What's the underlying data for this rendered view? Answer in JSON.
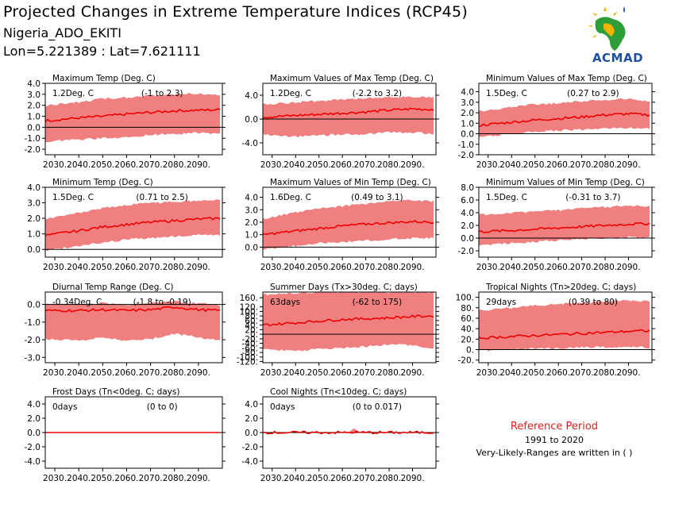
{
  "header": {
    "title": "Projected Changes in Extreme Temperature Indices (RCP45)",
    "location": "Nigeria_ADO_EKITI",
    "coordinates": "Lon=5.221389 : Lat=7.621111"
  },
  "logo": {
    "name": "ACMAD"
  },
  "reference": {
    "title": "Reference Period",
    "years": "1991 to 2020",
    "note": "Very-Likely-Ranges are written in ( )"
  },
  "colors": {
    "band": "#f08080",
    "line": "#ee0000",
    "zero": "#000000",
    "ref_title": "#e02020",
    "logo_text": "#1f4fa0"
  },
  "chart_data": [
    {
      "type": "area",
      "title": "Maximum Temp (Deg. C)",
      "value_label": "1.2Deg. C",
      "range_label": "(-1 to 2.3)",
      "xlim": [
        2026,
        2100
      ],
      "xticks": [
        2030,
        2040,
        2050,
        2060,
        2070,
        2080,
        2090
      ],
      "xticklabels": [
        "2030.",
        "2040.",
        "2050.",
        "2060.",
        "2070.",
        "2080.",
        "2090."
      ],
      "ylim": [
        -2.5,
        4.0
      ],
      "yticks": [
        -2.0,
        -1.0,
        0.0,
        1.0,
        2.0,
        3.0,
        4.0
      ],
      "yticklabels": [
        "-2.0",
        "-1.0",
        "0.0",
        "1.0",
        "2.0",
        "3.0",
        "4.0"
      ],
      "x": [
        2026,
        2040,
        2050,
        2060,
        2070,
        2080,
        2090,
        2099
      ],
      "median": [
        0.6,
        0.85,
        1.0,
        1.2,
        1.35,
        1.5,
        1.55,
        1.6
      ],
      "low": [
        -1.2,
        -1.0,
        -0.9,
        -0.8,
        -0.6,
        -0.5,
        -0.4,
        -0.5
      ],
      "high": [
        1.9,
        2.2,
        2.5,
        2.6,
        2.8,
        2.9,
        3.0,
        2.8
      ]
    },
    {
      "type": "area",
      "title": "Maximum Values of Max Temp (Deg. C)",
      "value_label": "1.2Deg. C",
      "range_label": "(-2.2 to 3.2)",
      "xlim": [
        2026,
        2100
      ],
      "xticks": [
        2030,
        2040,
        2050,
        2060,
        2070,
        2080,
        2090
      ],
      "xticklabels": [
        "2030.",
        "2040.",
        "2050.",
        "2060.",
        "2070.",
        "2080.",
        "2090."
      ],
      "ylim": [
        -6.0,
        6.0
      ],
      "yticks": [
        -4.0,
        0.0,
        4.0
      ],
      "yticklabels": [
        "-4.0",
        "0.0",
        "4.0"
      ],
      "x": [
        2026,
        2040,
        2050,
        2060,
        2070,
        2080,
        2090,
        2099
      ],
      "median": [
        0.3,
        0.6,
        0.8,
        1.0,
        1.2,
        1.5,
        1.7,
        1.6
      ],
      "low": [
        -2.4,
        -2.8,
        -2.6,
        -2.4,
        -2.3,
        -2.0,
        -2.1,
        -2.3
      ],
      "high": [
        2.3,
        2.6,
        2.9,
        3.1,
        3.3,
        3.5,
        3.6,
        3.4
      ]
    },
    {
      "type": "area",
      "title": "Minimum Values of Max Temp (Deg. C)",
      "value_label": "1.5Deg. C",
      "range_label": "(0.27 to 2.9)",
      "xlim": [
        2026,
        2100
      ],
      "xticks": [
        2030,
        2040,
        2050,
        2060,
        2070,
        2080,
        2090
      ],
      "xticklabels": [
        "2030.",
        "2040.",
        "2050.",
        "2060.",
        "2070.",
        "2080.",
        "2090."
      ],
      "ylim": [
        -2.0,
        4.8
      ],
      "yticks": [
        -2.0,
        -1.0,
        0.0,
        1.0,
        2.0,
        3.0,
        4.0
      ],
      "yticklabels": [
        "-2.0",
        "-1.0",
        "0.0",
        "1.0",
        "2.0",
        "3.0",
        "4.0"
      ],
      "x": [
        2026,
        2040,
        2050,
        2060,
        2070,
        2080,
        2090,
        2099
      ],
      "median": [
        0.8,
        1.1,
        1.3,
        1.45,
        1.6,
        1.8,
        1.9,
        1.8
      ],
      "low": [
        -0.2,
        0.1,
        0.3,
        0.4,
        0.5,
        0.6,
        0.7,
        0.6
      ],
      "high": [
        2.0,
        2.4,
        2.7,
        2.8,
        3.0,
        3.1,
        3.2,
        3.0
      ]
    },
    {
      "type": "area",
      "title": "Minimum Temp (Deg. C)",
      "value_label": "1.5Deg. C",
      "range_label": "(0.71 to 2.5)",
      "xlim": [
        2026,
        2100
      ],
      "xticks": [
        2030,
        2040,
        2050,
        2060,
        2070,
        2080,
        2090
      ],
      "xticklabels": [
        "2030.",
        "2040.",
        "2050.",
        "2060.",
        "2070.",
        "2080.",
        "2090."
      ],
      "ylim": [
        -0.5,
        4.0
      ],
      "yticks": [
        0.0,
        1.0,
        2.0,
        3.0,
        4.0
      ],
      "yticklabels": [
        "0.0",
        "1.0",
        "2.0",
        "3.0",
        "4.0"
      ],
      "x": [
        2026,
        2040,
        2050,
        2060,
        2070,
        2080,
        2090,
        2099
      ],
      "median": [
        0.9,
        1.2,
        1.45,
        1.6,
        1.75,
        1.85,
        1.95,
        2.0
      ],
      "low": [
        0.0,
        0.3,
        0.5,
        0.7,
        0.8,
        0.9,
        1.0,
        1.0
      ],
      "high": [
        1.9,
        2.3,
        2.6,
        2.8,
        2.9,
        3.0,
        3.1,
        3.1
      ]
    },
    {
      "type": "area",
      "title": "Maximum Values of Min Temp (Deg. C)",
      "value_label": "1.6Deg. C",
      "range_label": "(0.49 to 3.1)",
      "xlim": [
        2026,
        2100
      ],
      "xticks": [
        2030,
        2040,
        2050,
        2060,
        2070,
        2080,
        2090
      ],
      "xticklabels": [
        "2030.",
        "2040.",
        "2050.",
        "2060.",
        "2070.",
        "2080.",
        "2090."
      ],
      "ylim": [
        -0.8,
        4.8
      ],
      "yticks": [
        0.0,
        1.0,
        2.0,
        3.0,
        4.0
      ],
      "yticklabels": [
        "0.0",
        "1.0",
        "2.0",
        "3.0",
        "4.0"
      ],
      "x": [
        2026,
        2040,
        2050,
        2060,
        2070,
        2080,
        2090,
        2099
      ],
      "median": [
        1.0,
        1.3,
        1.5,
        1.7,
        1.85,
        1.95,
        2.05,
        2.0
      ],
      "low": [
        -0.1,
        0.2,
        0.4,
        0.5,
        0.6,
        0.7,
        0.8,
        0.8
      ],
      "high": [
        2.2,
        2.7,
        3.0,
        3.2,
        3.4,
        3.6,
        3.7,
        3.6
      ]
    },
    {
      "type": "area",
      "title": "Minimum Values of Min Temp (Deg. C)",
      "value_label": "1.5Deg. C",
      "range_label": "(-0.31 to 3.7)",
      "xlim": [
        2026,
        2100
      ],
      "xticks": [
        2030,
        2040,
        2050,
        2060,
        2070,
        2080,
        2090
      ],
      "xticklabels": [
        "2030.",
        "2040.",
        "2050.",
        "2060.",
        "2070.",
        "2080.",
        "2090."
      ],
      "ylim": [
        -3.0,
        8.0
      ],
      "yticks": [
        -2.0,
        0.0,
        2.0,
        4.0,
        6.0,
        8.0
      ],
      "yticklabels": [
        "-2.0",
        "0.0",
        "2.0",
        "4.0",
        "6.0",
        "8.0"
      ],
      "x": [
        2026,
        2040,
        2050,
        2060,
        2070,
        2080,
        2090,
        2099
      ],
      "median": [
        1.0,
        1.2,
        1.4,
        1.6,
        1.8,
        2.0,
        2.2,
        2.3
      ],
      "low": [
        -1.0,
        -0.6,
        -0.4,
        -0.2,
        0.0,
        0.1,
        0.3,
        0.2
      ],
      "high": [
        3.5,
        3.8,
        4.0,
        4.2,
        4.5,
        4.7,
        5.0,
        4.8
      ]
    },
    {
      "type": "area",
      "title": "Diurnal Temp Range (Deg. C)",
      "value_label": "-0.34Deg. C",
      "range_label": "(-1.8 to -0.19)",
      "xlim": [
        2026,
        2100
      ],
      "xticks": [
        2030,
        2040,
        2050,
        2060,
        2070,
        2080,
        2090
      ],
      "xticklabels": [
        "2030.",
        "2040.",
        "2050.",
        "2060.",
        "2070.",
        "2080.",
        "2090."
      ],
      "ylim": [
        -3.3,
        0.7
      ],
      "yticks": [
        -3.0,
        -2.0,
        -1.0,
        0.0
      ],
      "yticklabels": [
        "-3.0",
        "-2.0",
        "-1.0",
        "0.0"
      ],
      "x": [
        2026,
        2040,
        2050,
        2060,
        2070,
        2080,
        2090,
        2099
      ],
      "median": [
        -0.35,
        -0.35,
        -0.3,
        -0.35,
        -0.3,
        -0.15,
        -0.3,
        -0.35
      ],
      "low": [
        -1.9,
        -2.0,
        -1.8,
        -2.0,
        -1.9,
        -1.6,
        -1.8,
        -2.0
      ],
      "high": [
        -0.05,
        -0.05,
        0.0,
        -0.05,
        0.0,
        0.1,
        0.0,
        -0.1
      ]
    },
    {
      "type": "area",
      "title": "Summer Days (Tx>30deg. C; days)",
      "value_label": "63days",
      "range_label": "(-62 to 175)",
      "xlim": [
        2026,
        2100
      ],
      "xticks": [
        2030,
        2040,
        2050,
        2060,
        2070,
        2080,
        2090
      ],
      "xticklabels": [
        "2030.",
        "2040.",
        "2050.",
        "2060.",
        "2070.",
        "2080.",
        "2090."
      ],
      "ylim": [
        -125,
        185
      ],
      "yticks": [
        -120,
        -100,
        -80,
        -60,
        -40,
        -20,
        0,
        20,
        40,
        60,
        80,
        100,
        120,
        160
      ],
      "yticklabels": [
        "-120.",
        "-100.",
        "-80.",
        "-60.",
        "-40.",
        "-20.",
        "0.",
        "20.",
        "40.",
        "60.",
        "80.",
        "100.",
        "120.",
        "160."
      ],
      "x": [
        2026,
        2040,
        2050,
        2060,
        2070,
        2080,
        2090,
        2099
      ],
      "median": [
        40,
        50,
        58,
        65,
        68,
        72,
        78,
        80
      ],
      "low": [
        -60,
        -70,
        -60,
        -55,
        -50,
        -40,
        -45,
        -60
      ],
      "high": [
        170,
        175,
        178,
        180,
        180,
        180,
        180,
        180
      ]
    },
    {
      "type": "area",
      "title": "Tropical Nights (Tn>20deg. C; days)",
      "value_label": "29days",
      "range_label": "(0.39 to 80)",
      "xlim": [
        2026,
        2100
      ],
      "xticks": [
        2030,
        2040,
        2050,
        2060,
        2070,
        2080,
        2090
      ],
      "xticklabels": [
        "2030.",
        "2040.",
        "2050.",
        "2060.",
        "2070.",
        "2080.",
        "2090."
      ],
      "ylim": [
        -25,
        110
      ],
      "yticks": [
        -20,
        0,
        20,
        40,
        60,
        80,
        100
      ],
      "yticklabels": [
        "-20.",
        "0.",
        "20.",
        "40.",
        "60.",
        "80.",
        "100."
      ],
      "x": [
        2026,
        2040,
        2050,
        2060,
        2070,
        2080,
        2090,
        2099
      ],
      "median": [
        22,
        25,
        27,
        29,
        31,
        33,
        35,
        36
      ],
      "low": [
        0,
        2,
        4,
        5,
        6,
        7,
        8,
        6
      ],
      "high": [
        72,
        78,
        82,
        85,
        88,
        90,
        92,
        90
      ]
    },
    {
      "type": "area",
      "title": "Frost Days (Tn<0deg. C; days)",
      "value_label": "0days",
      "range_label": "(0 to 0)",
      "xlim": [
        2026,
        2100
      ],
      "xticks": [
        2030,
        2040,
        2050,
        2060,
        2070,
        2080,
        2090
      ],
      "xticklabels": [
        "2030.",
        "2040.",
        "2050.",
        "2060.",
        "2070.",
        "2080.",
        "2090."
      ],
      "ylim": [
        -5.0,
        5.0
      ],
      "yticks": [
        -4.0,
        -2.0,
        0.0,
        2.0,
        4.0
      ],
      "yticklabels": [
        "-4.0",
        "-2.0",
        "0.0",
        "2.0",
        "4.0"
      ],
      "x": [
        2026,
        2099
      ],
      "median": [
        0,
        0
      ],
      "low": [
        0,
        0
      ],
      "high": [
        0,
        0
      ]
    },
    {
      "type": "area",
      "title": "Cool Nights (Tn<10deg. C; days)",
      "value_label": "0days",
      "range_label": "(0 to 0.017)",
      "xlim": [
        2026,
        2100
      ],
      "xticks": [
        2030,
        2040,
        2050,
        2060,
        2070,
        2080,
        2090
      ],
      "xticklabels": [
        "2030.",
        "2040.",
        "2050.",
        "2060.",
        "2070.",
        "2080.",
        "2090."
      ],
      "ylim": [
        -5.0,
        5.0
      ],
      "yticks": [
        -4.0,
        -2.0,
        0.0,
        2.0,
        4.0
      ],
      "yticklabels": [
        "-4.0",
        "-2.0",
        "0.0",
        "2.0",
        "4.0"
      ],
      "x": [
        2026,
        2060,
        2063,
        2065,
        2067,
        2099
      ],
      "median": [
        0,
        0,
        0,
        0.05,
        0,
        0
      ],
      "low": [
        0,
        0,
        0,
        0,
        0,
        0
      ],
      "high": [
        0.02,
        0.02,
        0.1,
        0.6,
        0.1,
        0.02
      ]
    }
  ]
}
